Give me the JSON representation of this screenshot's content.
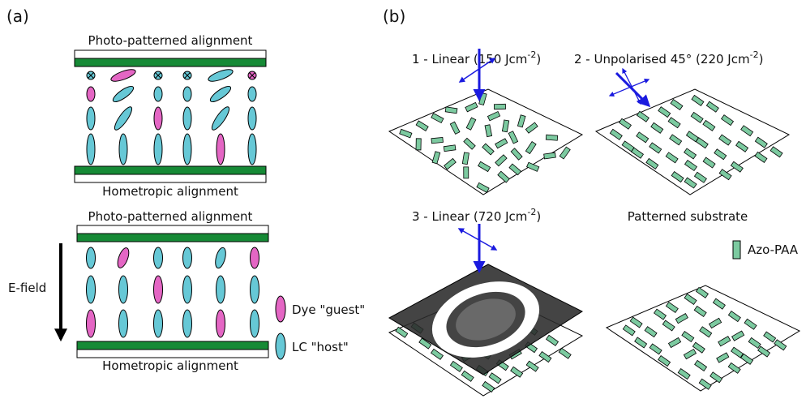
{
  "panel_a": {
    "label": "(a)",
    "top": {
      "title": "Photo-patterned alignment",
      "bottom_label": "Hometropic alignment"
    },
    "bottom": {
      "title": "Photo-patterned alignment",
      "bottom_label": "Hometropic alignment",
      "field_label": "E-field"
    },
    "legend": {
      "dye": "Dye \"guest\"",
      "lc": "LC \"host\""
    }
  },
  "panel_b": {
    "label": "(b)",
    "step1": {
      "text": "1 - Linear (150 Jcm",
      "sup": "-2",
      "close": ")"
    },
    "step2": {
      "text": "2 - Unpolarised 45° (220 Jcm",
      "sup": "-2",
      "close": ")"
    },
    "step3": {
      "text": "3 - Linear (720 Jcm",
      "sup": "-2",
      "close": ")"
    },
    "result_label": "Patterned substrate",
    "legend": "Azo-PAA"
  },
  "colors": {
    "alignment_green": "#168a36",
    "lc_cyan": "#66c8d6",
    "dye_magenta": "#e466c4",
    "azo_green": "#7ccaa0",
    "arrow_blue": "#1a1adf",
    "mask_dark": "#2a2a2a"
  }
}
